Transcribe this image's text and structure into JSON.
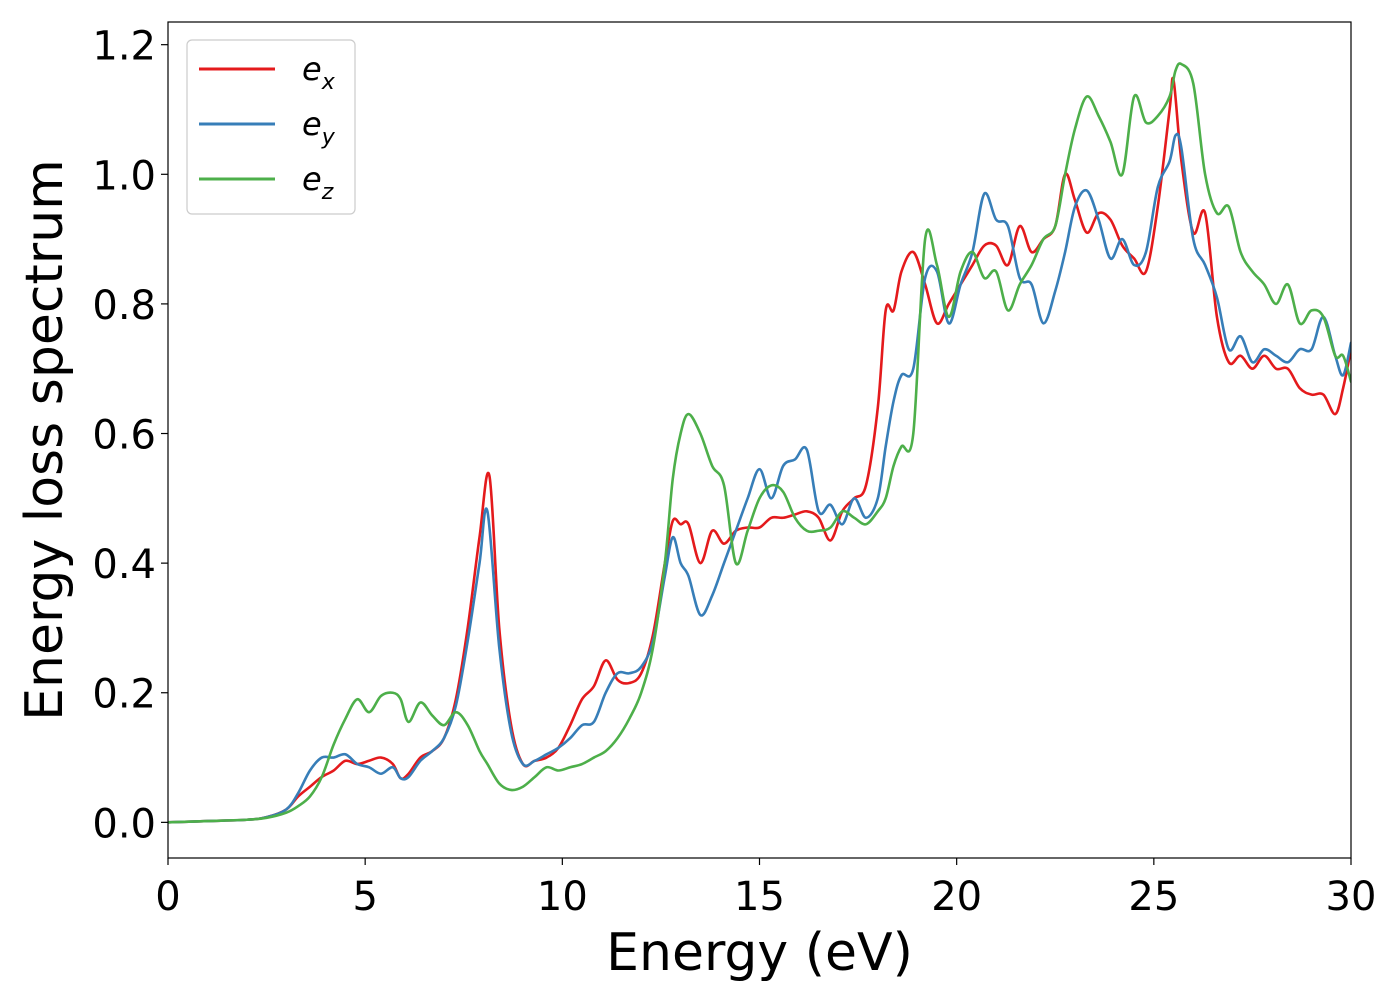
{
  "chart_data": {
    "type": "line",
    "xlabel": "Energy (eV)",
    "ylabel": "Energy loss spectrum",
    "xlim": [
      0,
      30
    ],
    "ylim": [
      -0.055,
      1.235
    ],
    "xticks": [
      "0",
      "5",
      "10",
      "15",
      "20",
      "25",
      "30"
    ],
    "yticks": [
      "0.0",
      "0.2",
      "0.4",
      "0.6",
      "0.8",
      "1.0",
      "1.2"
    ],
    "grid": false,
    "legend_position": "top-left",
    "series": [
      {
        "name": "e_x",
        "label_main": "e",
        "label_sub": "x",
        "color": "#e41a1c",
        "x": [
          0,
          1,
          2,
          2.5,
          3,
          3.3,
          3.6,
          3.9,
          4.2,
          4.5,
          4.8,
          5.1,
          5.4,
          5.7,
          5.9,
          6.1,
          6.4,
          6.7,
          7.0,
          7.3,
          7.6,
          7.9,
          8.15,
          8.4,
          8.7,
          9.0,
          9.3,
          9.6,
          9.9,
          10.2,
          10.5,
          10.8,
          11.1,
          11.4,
          11.7,
          12.0,
          12.3,
          12.6,
          12.8,
          13.0,
          13.2,
          13.5,
          13.8,
          14.1,
          14.4,
          14.7,
          15.0,
          15.3,
          15.6,
          15.9,
          16.2,
          16.5,
          16.8,
          17.1,
          17.4,
          17.7,
          18.0,
          18.2,
          18.4,
          18.6,
          18.9,
          19.2,
          19.5,
          19.8,
          20.1,
          20.4,
          20.7,
          21.0,
          21.3,
          21.6,
          21.9,
          22.2,
          22.5,
          22.75,
          23.0,
          23.3,
          23.6,
          23.9,
          24.2,
          24.5,
          24.8,
          25.1,
          25.4,
          25.5,
          25.7,
          26.0,
          26.3,
          26.6,
          26.9,
          27.2,
          27.5,
          27.8,
          28.1,
          28.4,
          28.7,
          29.0,
          29.3,
          29.6,
          29.8,
          30.0
        ],
        "y": [
          0,
          0.002,
          0.004,
          0.008,
          0.02,
          0.04,
          0.055,
          0.07,
          0.08,
          0.095,
          0.09,
          0.095,
          0.1,
          0.09,
          0.068,
          0.075,
          0.1,
          0.11,
          0.13,
          0.19,
          0.3,
          0.44,
          0.535,
          0.3,
          0.15,
          0.09,
          0.095,
          0.1,
          0.115,
          0.15,
          0.19,
          0.21,
          0.25,
          0.22,
          0.215,
          0.23,
          0.29,
          0.4,
          0.465,
          0.46,
          0.46,
          0.4,
          0.45,
          0.43,
          0.45,
          0.455,
          0.455,
          0.47,
          0.47,
          0.475,
          0.48,
          0.47,
          0.435,
          0.48,
          0.5,
          0.52,
          0.64,
          0.79,
          0.79,
          0.85,
          0.88,
          0.83,
          0.77,
          0.8,
          0.83,
          0.86,
          0.89,
          0.89,
          0.86,
          0.92,
          0.88,
          0.9,
          0.92,
          1.0,
          0.96,
          0.91,
          0.94,
          0.93,
          0.89,
          0.87,
          0.85,
          0.95,
          1.1,
          1.145,
          1.02,
          0.91,
          0.94,
          0.78,
          0.71,
          0.72,
          0.7,
          0.72,
          0.7,
          0.7,
          0.67,
          0.66,
          0.66,
          0.63,
          0.67,
          0.73
        ]
      },
      {
        "name": "e_y",
        "label_main": "e",
        "label_sub": "y",
        "color": "#377eb8",
        "x": [
          0,
          1,
          2,
          2.5,
          3,
          3.3,
          3.6,
          3.9,
          4.2,
          4.5,
          4.8,
          5.1,
          5.4,
          5.7,
          5.9,
          6.1,
          6.4,
          6.7,
          7.0,
          7.3,
          7.6,
          7.9,
          8.1,
          8.4,
          8.7,
          9.0,
          9.3,
          9.6,
          9.9,
          10.2,
          10.5,
          10.8,
          11.1,
          11.4,
          11.7,
          12.0,
          12.3,
          12.6,
          12.8,
          13.0,
          13.2,
          13.5,
          13.8,
          14.1,
          14.4,
          14.7,
          15.0,
          15.3,
          15.6,
          15.9,
          16.2,
          16.5,
          16.8,
          17.1,
          17.4,
          17.7,
          18.0,
          18.2,
          18.4,
          18.6,
          18.9,
          19.2,
          19.5,
          19.8,
          20.1,
          20.4,
          20.7,
          21.0,
          21.3,
          21.6,
          21.9,
          22.2,
          22.5,
          22.75,
          23.0,
          23.3,
          23.6,
          23.9,
          24.2,
          24.5,
          24.8,
          25.1,
          25.4,
          25.55,
          25.7,
          26.0,
          26.3,
          26.6,
          26.9,
          27.2,
          27.5,
          27.8,
          28.1,
          28.4,
          28.7,
          29.0,
          29.3,
          29.6,
          29.8,
          30.0
        ],
        "y": [
          0,
          0.002,
          0.004,
          0.008,
          0.02,
          0.045,
          0.08,
          0.1,
          0.1,
          0.105,
          0.09,
          0.085,
          0.075,
          0.085,
          0.068,
          0.07,
          0.095,
          0.11,
          0.13,
          0.18,
          0.28,
          0.4,
          0.48,
          0.27,
          0.14,
          0.09,
          0.095,
          0.105,
          0.115,
          0.13,
          0.15,
          0.155,
          0.2,
          0.23,
          0.23,
          0.24,
          0.28,
          0.38,
          0.44,
          0.4,
          0.38,
          0.32,
          0.35,
          0.4,
          0.45,
          0.5,
          0.545,
          0.5,
          0.55,
          0.56,
          0.575,
          0.48,
          0.49,
          0.46,
          0.5,
          0.47,
          0.5,
          0.58,
          0.65,
          0.69,
          0.7,
          0.84,
          0.85,
          0.77,
          0.83,
          0.88,
          0.97,
          0.93,
          0.92,
          0.84,
          0.83,
          0.77,
          0.82,
          0.88,
          0.95,
          0.975,
          0.93,
          0.87,
          0.9,
          0.86,
          0.88,
          0.98,
          1.02,
          1.06,
          1.04,
          0.9,
          0.86,
          0.81,
          0.73,
          0.75,
          0.71,
          0.73,
          0.72,
          0.71,
          0.73,
          0.73,
          0.78,
          0.72,
          0.69,
          0.74
        ]
      },
      {
        "name": "e_z",
        "label_main": "e",
        "label_sub": "z",
        "color": "#4daf4a",
        "x": [
          0,
          1,
          2,
          2.5,
          3,
          3.3,
          3.6,
          3.9,
          4.2,
          4.5,
          4.8,
          5.1,
          5.4,
          5.7,
          5.9,
          6.1,
          6.4,
          6.7,
          7.0,
          7.3,
          7.6,
          7.9,
          8.1,
          8.4,
          8.7,
          9.0,
          9.3,
          9.6,
          9.9,
          10.2,
          10.5,
          10.8,
          11.1,
          11.4,
          11.7,
          12.0,
          12.3,
          12.6,
          12.8,
          13.0,
          13.2,
          13.5,
          13.8,
          14.1,
          14.4,
          14.7,
          15.0,
          15.3,
          15.6,
          15.9,
          16.2,
          16.5,
          16.8,
          17.1,
          17.4,
          17.7,
          18.0,
          18.2,
          18.4,
          18.6,
          18.9,
          19.2,
          19.5,
          19.8,
          20.1,
          20.4,
          20.7,
          21.0,
          21.3,
          21.6,
          21.9,
          22.2,
          22.5,
          22.75,
          23.0,
          23.3,
          23.6,
          23.9,
          24.2,
          24.5,
          24.8,
          25.1,
          25.4,
          25.55,
          25.7,
          26.0,
          26.3,
          26.6,
          26.9,
          27.2,
          27.5,
          27.8,
          28.1,
          28.4,
          28.7,
          29.0,
          29.3,
          29.6,
          29.8,
          30.0
        ],
        "y": [
          0,
          0.002,
          0.004,
          0.007,
          0.015,
          0.025,
          0.04,
          0.07,
          0.12,
          0.16,
          0.19,
          0.17,
          0.195,
          0.2,
          0.19,
          0.155,
          0.185,
          0.165,
          0.15,
          0.17,
          0.15,
          0.11,
          0.09,
          0.06,
          0.05,
          0.055,
          0.07,
          0.085,
          0.08,
          0.085,
          0.09,
          0.1,
          0.11,
          0.13,
          0.16,
          0.2,
          0.27,
          0.4,
          0.53,
          0.6,
          0.63,
          0.6,
          0.55,
          0.52,
          0.4,
          0.45,
          0.5,
          0.52,
          0.51,
          0.47,
          0.45,
          0.45,
          0.455,
          0.48,
          0.47,
          0.46,
          0.48,
          0.5,
          0.55,
          0.58,
          0.6,
          0.9,
          0.86,
          0.78,
          0.85,
          0.88,
          0.84,
          0.85,
          0.79,
          0.83,
          0.86,
          0.9,
          0.92,
          1.0,
          1.07,
          1.12,
          1.09,
          1.05,
          1.0,
          1.12,
          1.08,
          1.09,
          1.12,
          1.16,
          1.17,
          1.14,
          1.0,
          0.94,
          0.95,
          0.88,
          0.85,
          0.83,
          0.8,
          0.83,
          0.77,
          0.79,
          0.78,
          0.72,
          0.72,
          0.68
        ]
      }
    ]
  }
}
